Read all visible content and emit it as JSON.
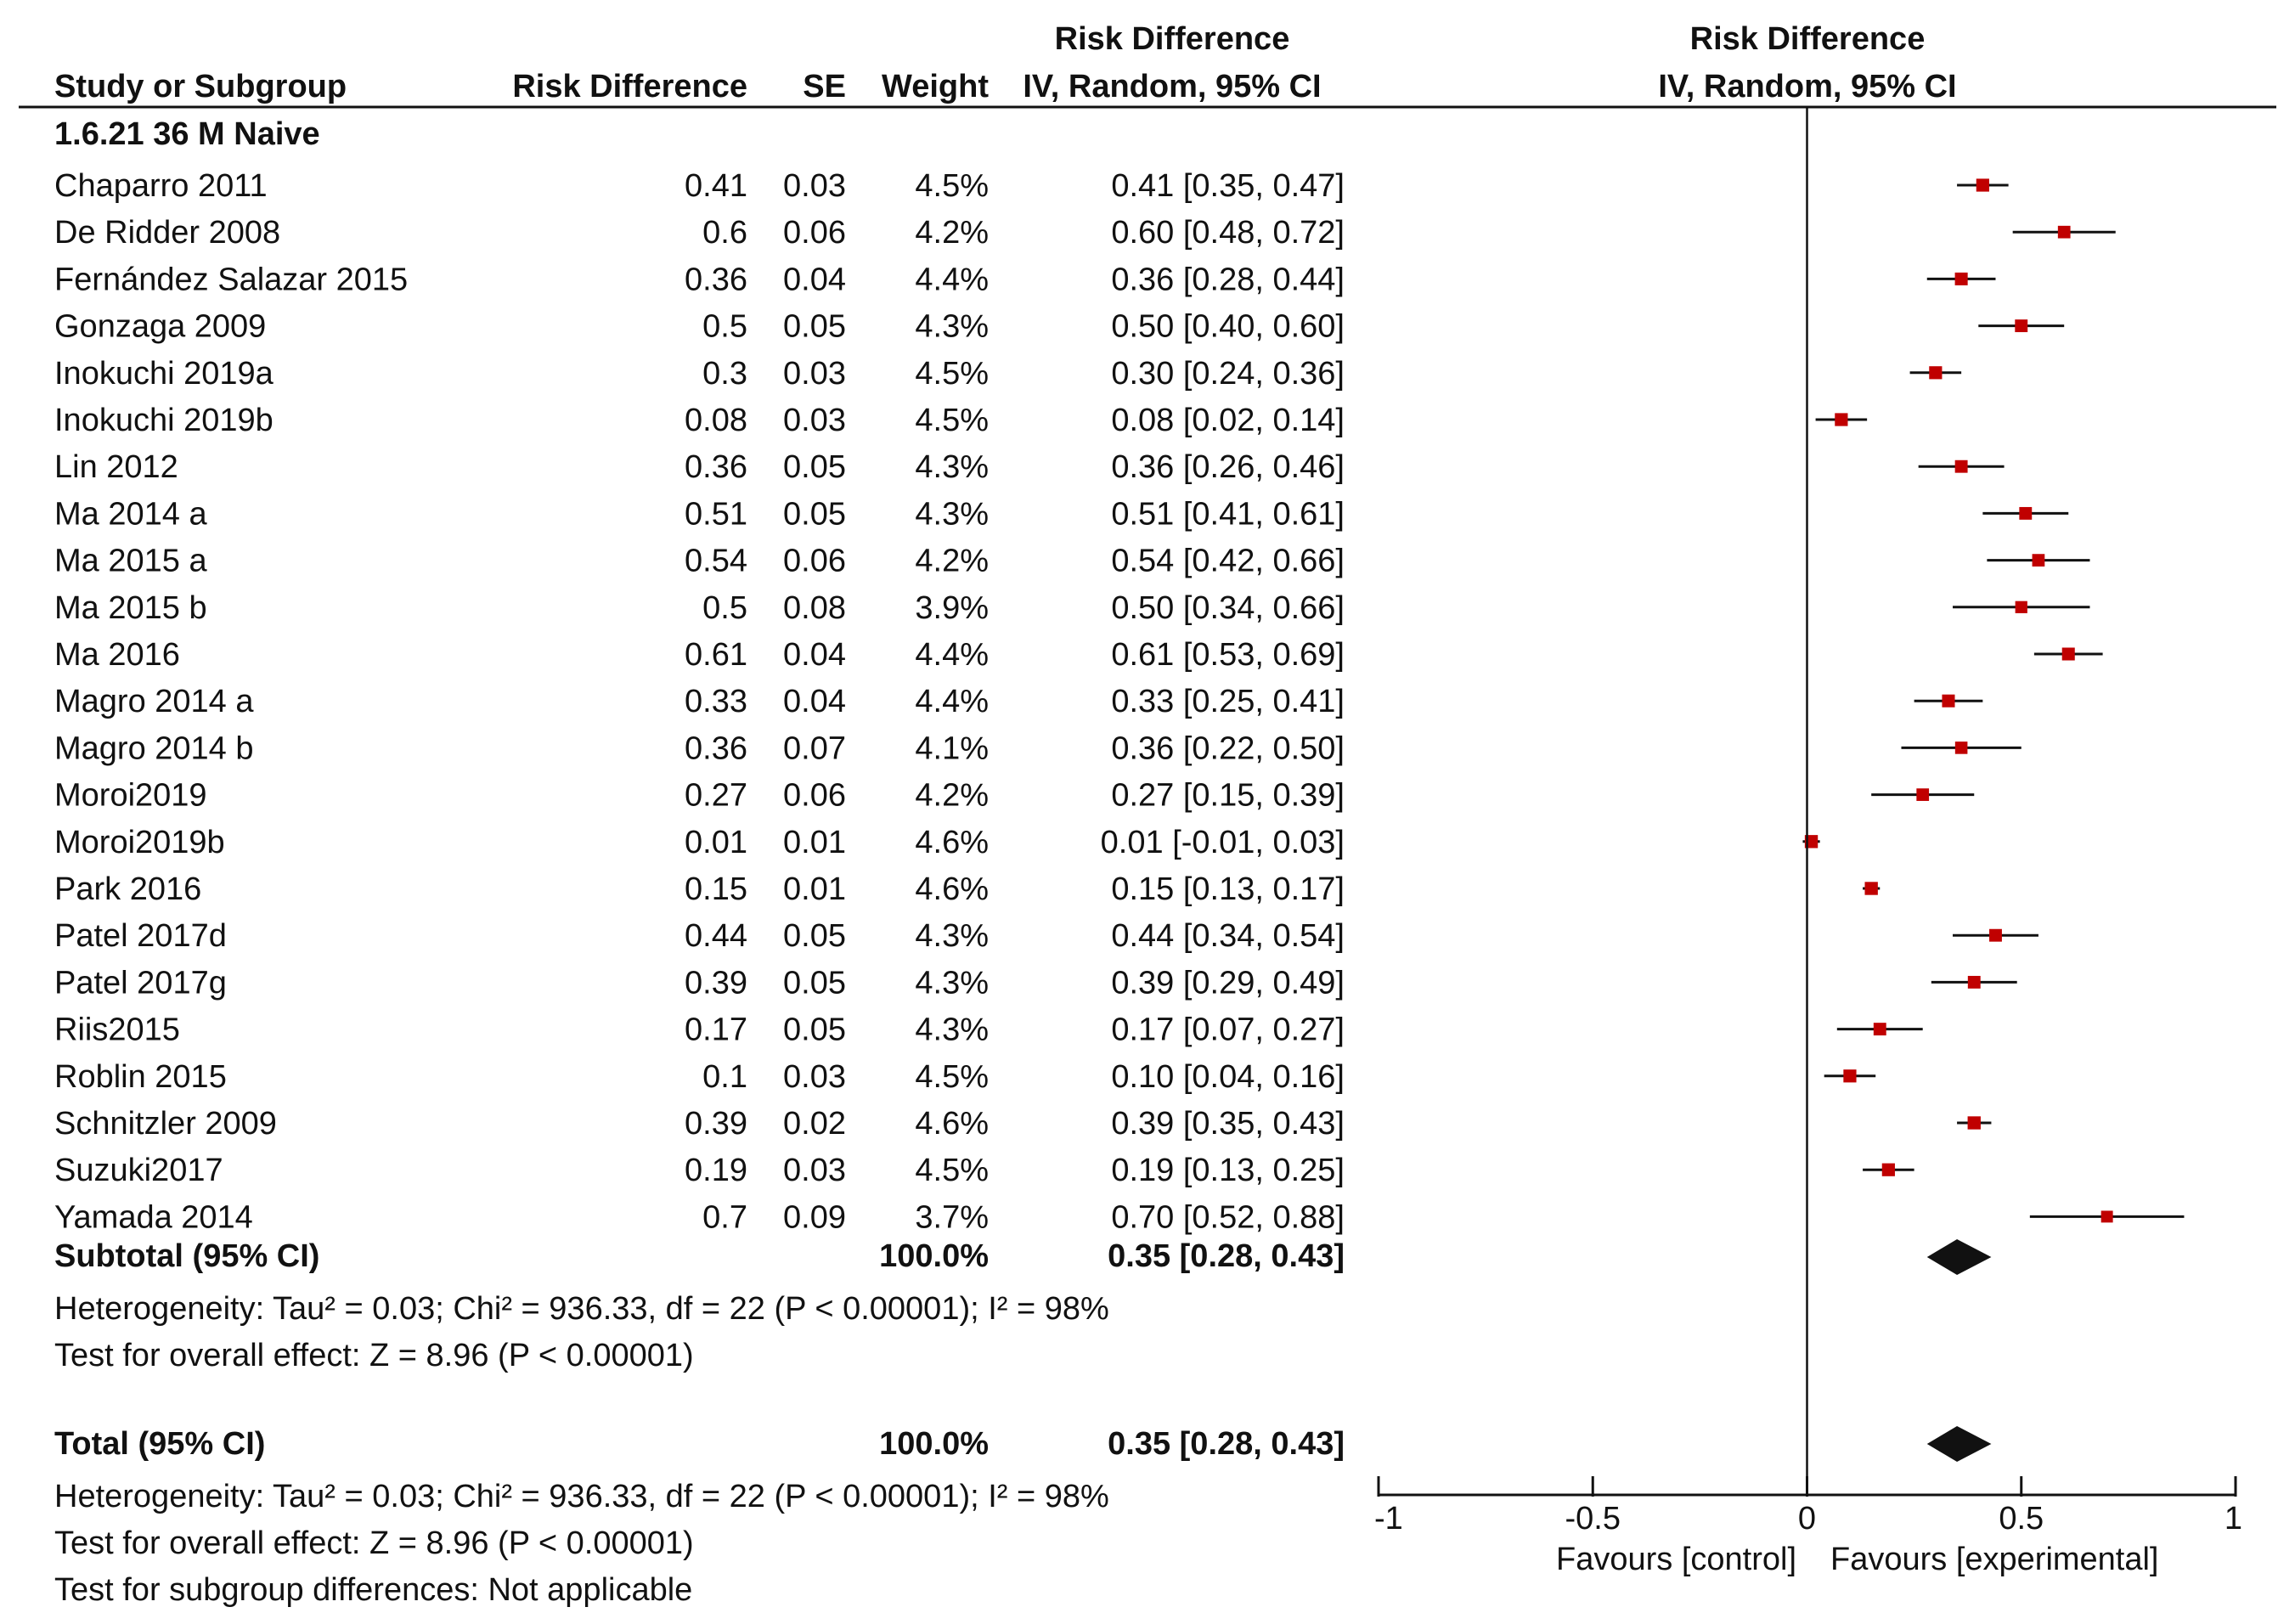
{
  "header": {
    "col_study": "Study or Subgroup",
    "col_rd": "Risk Difference",
    "col_se": "SE",
    "col_weight": "Weight",
    "col_ci_line1": "Risk Difference",
    "col_ci_line2": "IV, Random, 95% CI",
    "plot_line1": "Risk Difference",
    "plot_line2": "IV, Random, 95% CI"
  },
  "subgroup_title": "1.6.21 36 M Naive",
  "studies": [
    {
      "name": "Chaparro 2011",
      "rd": "0.41",
      "se": "0.03",
      "weight": "4.5%",
      "ci": "0.41 [0.35, 0.47]",
      "est": 0.41,
      "lo": 0.35,
      "hi": 0.47
    },
    {
      "name": "De Ridder 2008",
      "rd": "0.6",
      "se": "0.06",
      "weight": "4.2%",
      "ci": "0.60 [0.48, 0.72]",
      "est": 0.6,
      "lo": 0.48,
      "hi": 0.72
    },
    {
      "name": "Fernández Salazar 2015",
      "rd": "0.36",
      "se": "0.04",
      "weight": "4.4%",
      "ci": "0.36 [0.28, 0.44]",
      "est": 0.36,
      "lo": 0.28,
      "hi": 0.44
    },
    {
      "name": "Gonzaga 2009",
      "rd": "0.5",
      "se": "0.05",
      "weight": "4.3%",
      "ci": "0.50 [0.40, 0.60]",
      "est": 0.5,
      "lo": 0.4,
      "hi": 0.6
    },
    {
      "name": "Inokuchi 2019a",
      "rd": "0.3",
      "se": "0.03",
      "weight": "4.5%",
      "ci": "0.30 [0.24, 0.36]",
      "est": 0.3,
      "lo": 0.24,
      "hi": 0.36
    },
    {
      "name": "Inokuchi 2019b",
      "rd": "0.08",
      "se": "0.03",
      "weight": "4.5%",
      "ci": "0.08 [0.02, 0.14]",
      "est": 0.08,
      "lo": 0.02,
      "hi": 0.14
    },
    {
      "name": "Lin 2012",
      "rd": "0.36",
      "se": "0.05",
      "weight": "4.3%",
      "ci": "0.36 [0.26, 0.46]",
      "est": 0.36,
      "lo": 0.26,
      "hi": 0.46
    },
    {
      "name": "Ma 2014 a",
      "rd": "0.51",
      "se": "0.05",
      "weight": "4.3%",
      "ci": "0.51 [0.41, 0.61]",
      "est": 0.51,
      "lo": 0.41,
      "hi": 0.61
    },
    {
      "name": "Ma 2015 a",
      "rd": "0.54",
      "se": "0.06",
      "weight": "4.2%",
      "ci": "0.54 [0.42, 0.66]",
      "est": 0.54,
      "lo": 0.42,
      "hi": 0.66
    },
    {
      "name": "Ma 2015 b",
      "rd": "0.5",
      "se": "0.08",
      "weight": "3.9%",
      "ci": "0.50 [0.34, 0.66]",
      "est": 0.5,
      "lo": 0.34,
      "hi": 0.66
    },
    {
      "name": "Ma 2016",
      "rd": "0.61",
      "se": "0.04",
      "weight": "4.4%",
      "ci": "0.61 [0.53, 0.69]",
      "est": 0.61,
      "lo": 0.53,
      "hi": 0.69
    },
    {
      "name": "Magro 2014 a",
      "rd": "0.33",
      "se": "0.04",
      "weight": "4.4%",
      "ci": "0.33 [0.25, 0.41]",
      "est": 0.33,
      "lo": 0.25,
      "hi": 0.41
    },
    {
      "name": "Magro 2014 b",
      "rd": "0.36",
      "se": "0.07",
      "weight": "4.1%",
      "ci": "0.36 [0.22, 0.50]",
      "est": 0.36,
      "lo": 0.22,
      "hi": 0.5
    },
    {
      "name": "Moroi2019",
      "rd": "0.27",
      "se": "0.06",
      "weight": "4.2%",
      "ci": "0.27 [0.15, 0.39]",
      "est": 0.27,
      "lo": 0.15,
      "hi": 0.39
    },
    {
      "name": "Moroi2019b",
      "rd": "0.01",
      "se": "0.01",
      "weight": "4.6%",
      "ci": "0.01 [-0.01, 0.03]",
      "est": 0.01,
      "lo": -0.01,
      "hi": 0.03
    },
    {
      "name": "Park 2016",
      "rd": "0.15",
      "se": "0.01",
      "weight": "4.6%",
      "ci": "0.15 [0.13, 0.17]",
      "est": 0.15,
      "lo": 0.13,
      "hi": 0.17
    },
    {
      "name": "Patel 2017d",
      "rd": "0.44",
      "se": "0.05",
      "weight": "4.3%",
      "ci": "0.44 [0.34, 0.54]",
      "est": 0.44,
      "lo": 0.34,
      "hi": 0.54
    },
    {
      "name": "Patel 2017g",
      "rd": "0.39",
      "se": "0.05",
      "weight": "4.3%",
      "ci": "0.39 [0.29, 0.49]",
      "est": 0.39,
      "lo": 0.29,
      "hi": 0.49
    },
    {
      "name": "Riis2015",
      "rd": "0.17",
      "se": "0.05",
      "weight": "4.3%",
      "ci": "0.17 [0.07, 0.27]",
      "est": 0.17,
      "lo": 0.07,
      "hi": 0.27
    },
    {
      "name": "Roblin 2015",
      "rd": "0.1",
      "se": "0.03",
      "weight": "4.5%",
      "ci": "0.10 [0.04, 0.16]",
      "est": 0.1,
      "lo": 0.04,
      "hi": 0.16
    },
    {
      "name": "Schnitzler 2009",
      "rd": "0.39",
      "se": "0.02",
      "weight": "4.6%",
      "ci": "0.39 [0.35, 0.43]",
      "est": 0.39,
      "lo": 0.35,
      "hi": 0.43
    },
    {
      "name": "Suzuki2017",
      "rd": "0.19",
      "se": "0.03",
      "weight": "4.5%",
      "ci": "0.19 [0.13, 0.25]",
      "est": 0.19,
      "lo": 0.13,
      "hi": 0.25
    },
    {
      "name": "Yamada 2014",
      "rd": "0.7",
      "se": "0.09",
      "weight": "3.7%",
      "ci": "0.70 [0.52, 0.88]",
      "est": 0.7,
      "lo": 0.52,
      "hi": 0.88
    }
  ],
  "subtotal": {
    "label": "Subtotal (95% CI)",
    "weight": "100.0%",
    "ci": "0.35 [0.28, 0.43]",
    "est": 0.35,
    "lo": 0.28,
    "hi": 0.43
  },
  "subtotal_heterogeneity": "Heterogeneity: Tau² = 0.03; Chi² = 936.33, df = 22 (P < 0.00001); I² = 98%",
  "subtotal_overall": "Test for overall effect: Z = 8.96 (P < 0.00001)",
  "total": {
    "label": "Total (95% CI)",
    "weight": "100.0%",
    "ci": "0.35 [0.28, 0.43]",
    "est": 0.35,
    "lo": 0.28,
    "hi": 0.43
  },
  "total_heterogeneity": "Heterogeneity: Tau² = 0.03; Chi² = 936.33, df = 22 (P < 0.00001); I² = 98%",
  "total_overall": "Test for overall effect: Z = 8.96 (P < 0.00001)",
  "subgroup_differences": "Test for subgroup differences: Not applicable",
  "axis": {
    "ticks": [
      -1,
      -0.5,
      0,
      0.5,
      1
    ],
    "tick_labels": [
      "-1",
      "-0.5",
      "0",
      "0.5",
      "1"
    ],
    "xlim": [
      -1,
      1
    ],
    "favours_left": "Favours [control]",
    "favours_right": "Favours [experimental]"
  },
  "colors": {
    "marker": "#c00000",
    "ink": "#111111"
  },
  "chart_data": {
    "type": "scatter",
    "title": "Risk Difference",
    "xlabel": "IV, Random, 95% CI",
    "ylabel": "",
    "xlim": [
      -1,
      1
    ],
    "categories": [
      "Chaparro 2011",
      "De Ridder 2008",
      "Fernández Salazar 2015",
      "Gonzaga 2009",
      "Inokuchi 2019a",
      "Inokuchi 2019b",
      "Lin 2012",
      "Ma 2014 a",
      "Ma 2015 a",
      "Ma 2015 b",
      "Ma 2016",
      "Magro 2014 a",
      "Magro 2014 b",
      "Moroi2019",
      "Moroi2019b",
      "Park 2016",
      "Patel 2017d",
      "Patel 2017g",
      "Riis2015",
      "Roblin 2015",
      "Schnitzler 2009",
      "Suzuki2017",
      "Yamada 2014"
    ],
    "series": [
      {
        "name": "Risk Difference",
        "values": [
          0.41,
          0.6,
          0.36,
          0.5,
          0.3,
          0.08,
          0.36,
          0.51,
          0.54,
          0.5,
          0.61,
          0.33,
          0.36,
          0.27,
          0.01,
          0.15,
          0.44,
          0.39,
          0.17,
          0.1,
          0.39,
          0.19,
          0.7
        ]
      },
      {
        "name": "CI lower",
        "values": [
          0.35,
          0.48,
          0.28,
          0.4,
          0.24,
          0.02,
          0.26,
          0.41,
          0.42,
          0.34,
          0.53,
          0.25,
          0.22,
          0.15,
          -0.01,
          0.13,
          0.34,
          0.29,
          0.07,
          0.04,
          0.35,
          0.13,
          0.52
        ]
      },
      {
        "name": "CI upper",
        "values": [
          0.47,
          0.72,
          0.44,
          0.6,
          0.36,
          0.14,
          0.46,
          0.61,
          0.66,
          0.66,
          0.69,
          0.41,
          0.5,
          0.39,
          0.03,
          0.17,
          0.54,
          0.49,
          0.27,
          0.16,
          0.43,
          0.25,
          0.88
        ]
      },
      {
        "name": "Weight (%)",
        "values": [
          4.5,
          4.2,
          4.4,
          4.3,
          4.5,
          4.5,
          4.3,
          4.3,
          4.2,
          3.9,
          4.4,
          4.4,
          4.1,
          4.2,
          4.6,
          4.6,
          4.3,
          4.3,
          4.3,
          4.5,
          4.6,
          4.5,
          3.7
        ]
      }
    ],
    "pooled": {
      "label": "Subtotal (95% CI)",
      "value": 0.35,
      "lo": 0.28,
      "hi": 0.43
    }
  }
}
